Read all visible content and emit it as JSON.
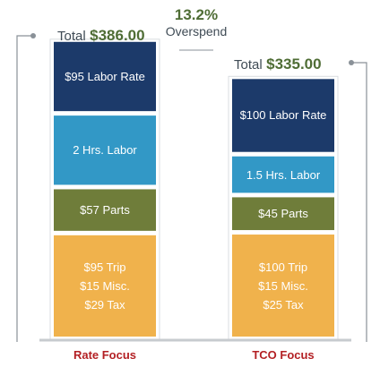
{
  "chart_data": {
    "type": "stacked-bar",
    "categories": [
      "Rate Focus",
      "TCO Focus"
    ],
    "totals": [
      {
        "label": "Total",
        "value": "$386.00"
      },
      {
        "label": "Total",
        "value": "$335.00"
      }
    ],
    "callout": {
      "value": "13.2%",
      "text": "Overspend"
    },
    "stacks": [
      [
        {
          "segment": "other",
          "value": 139,
          "lines": [
            "$95 Trip",
            "$15 Misc.",
            "$29 Tax"
          ],
          "color": "#f0b24c"
        },
        {
          "segment": "parts",
          "value": 57,
          "lines": [
            "$57 Parts"
          ],
          "color": "#6f7d3a"
        },
        {
          "segment": "labor-hours",
          "value": 95,
          "lines": [
            "2 Hrs. Labor"
          ],
          "color": "#3298c6"
        },
        {
          "segment": "labor-rate",
          "value": 95,
          "lines": [
            "$95 Labor Rate"
          ],
          "color": "#1c3a6a"
        }
      ],
      [
        {
          "segment": "other",
          "value": 140,
          "lines": [
            "$100 Trip",
            "$15 Misc.",
            "$25 Tax"
          ],
          "color": "#f0b24c"
        },
        {
          "segment": "parts",
          "value": 45,
          "lines": [
            "$45 Parts"
          ],
          "color": "#6f7d3a"
        },
        {
          "segment": "labor-hours",
          "value": 50,
          "lines": [
            "1.5 Hrs. Labor"
          ],
          "color": "#3298c6"
        },
        {
          "segment": "labor-rate",
          "value": 100,
          "lines": [
            "$100 Labor Rate"
          ],
          "color": "#1c3a6a"
        }
      ]
    ],
    "category_label_color": "#b32024",
    "ylim": [
      0,
      400
    ]
  }
}
